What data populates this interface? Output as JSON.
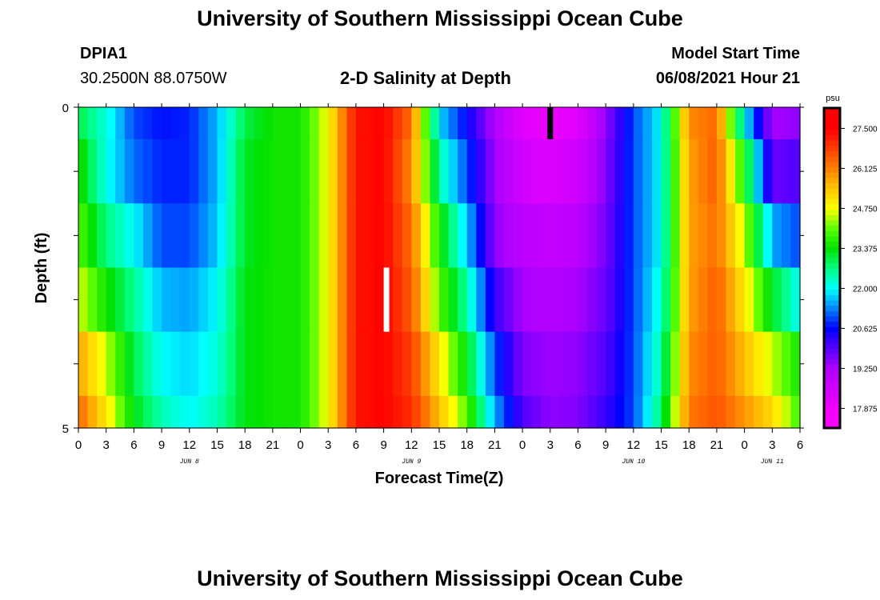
{
  "header": {
    "title": "University of Southern Mississippi Ocean Cube",
    "station_id": "DPIA1",
    "coordinates": "30.2500N  88.0750W",
    "chart_title": "2-D Salinity at Depth",
    "model_start_label": "Model Start Time",
    "model_start_value": "06/08/2021 Hour 21"
  },
  "footer": {
    "title": "University of Southern Mississippi Ocean Cube"
  },
  "colors": {
    "background": "#ffffff",
    "axis": "#000000"
  },
  "chart_data": {
    "type": "heatmap",
    "title": "2-D Salinity at Depth",
    "xlabel": "Forecast Time(Z)",
    "ylabel": "Depth (ft)",
    "ylim": [
      0,
      5
    ],
    "y_tick_labels": [
      "0",
      "5"
    ],
    "x_start_hour": 0,
    "x_hours": 78,
    "x_tick_labels": [
      "0",
      "3",
      "6",
      "9",
      "12",
      "15",
      "18",
      "21",
      "0",
      "3",
      "6",
      "9",
      "12",
      "15",
      "18",
      "21",
      "0",
      "3",
      "6",
      "9",
      "12",
      "15",
      "18",
      "21",
      "0",
      "3",
      "6"
    ],
    "date_labels": [
      {
        "hour": 12,
        "label": "JUN 8"
      },
      {
        "hour": 36,
        "label": "JUN 9"
      },
      {
        "hour": 60,
        "label": "JUN 10"
      },
      {
        "hour": 75,
        "label": "JUN 11"
      }
    ],
    "depth_layers": [
      0.0,
      0.5,
      1.5,
      2.5,
      3.5,
      4.5,
      5.0
    ],
    "time_nodes": [
      0,
      3,
      6,
      9,
      12,
      15,
      18,
      21,
      24,
      27,
      30,
      33,
      36,
      39,
      42,
      45,
      48,
      51,
      54,
      57,
      60,
      63,
      66,
      69,
      72,
      75,
      78
    ],
    "salinity_rows": [
      [
        23.0,
        22.2,
        21.0,
        20.7,
        20.8,
        21.6,
        23.0,
        23.5,
        23.5,
        24.8,
        27.3,
        27.5,
        26.3,
        21.8,
        20.6,
        19.2,
        18.2,
        18.0,
        18.2,
        19.5,
        21.0,
        22.0,
        26.0,
        26.4,
        22.0,
        19.3,
        19.5
      ],
      [
        23.6,
        22.1,
        21.2,
        20.8,
        20.8,
        21.6,
        23.2,
        23.5,
        23.5,
        24.8,
        27.3,
        27.5,
        26.0,
        22.5,
        21.0,
        19.4,
        18.5,
        18.3,
        18.6,
        19.6,
        21.0,
        22.0,
        25.8,
        26.5,
        23.5,
        19.8,
        20.0
      ],
      [
        24.0,
        22.7,
        22.0,
        21.0,
        21.0,
        21.7,
        23.2,
        23.5,
        23.5,
        24.8,
        27.3,
        27.5,
        26.3,
        23.5,
        21.7,
        19.5,
        19.0,
        18.8,
        19.0,
        19.7,
        21.0,
        22.0,
        25.8,
        26.3,
        24.5,
        21.5,
        21.0
      ],
      [
        24.6,
        23.5,
        22.6,
        21.6,
        21.5,
        22.0,
        23.3,
        23.5,
        23.5,
        24.8,
        27.3,
        27.5,
        26.5,
        24.0,
        22.5,
        20.2,
        19.3,
        19.2,
        19.3,
        19.8,
        21.0,
        22.2,
        25.8,
        26.5,
        25.0,
        23.2,
        22.0
      ],
      [
        25.8,
        24.5,
        23.0,
        22.0,
        21.8,
        22.2,
        23.3,
        23.5,
        23.5,
        24.8,
        27.3,
        27.5,
        26.8,
        25.0,
        23.3,
        21.0,
        19.6,
        19.4,
        19.5,
        20.0,
        21.0,
        22.5,
        26.0,
        26.5,
        25.5,
        24.5,
        23.5
      ],
      [
        26.4,
        25.0,
        23.3,
        22.4,
        22.0,
        22.4,
        23.3,
        23.5,
        23.5,
        24.8,
        27.3,
        27.5,
        27.0,
        25.5,
        24.0,
        21.5,
        20.0,
        19.5,
        19.6,
        20.2,
        21.0,
        22.8,
        26.2,
        26.6,
        25.9,
        25.2,
        23.8
      ]
    ],
    "missing_markers": [
      {
        "hour_start": 50.7,
        "hour_end": 51.3,
        "depth_top": 0.0,
        "depth_bottom": 0.5,
        "color": "#000000"
      },
      {
        "hour_start": 33.0,
        "hour_end": 33.6,
        "depth_top": 2.5,
        "depth_bottom": 3.5,
        "color": "#ffffff"
      }
    ],
    "colorbar": {
      "unit_label": "psu",
      "min": 17.2,
      "max": 28.2,
      "tick_labels": [
        "27.500",
        "26.125",
        "24.750",
        "23.375",
        "22.000",
        "20.625",
        "19.250",
        "17.875"
      ],
      "tick_values": [
        27.5,
        26.125,
        24.75,
        23.375,
        22.0,
        20.625,
        19.25,
        17.875
      ],
      "color_stops": [
        {
          "value": 17.2,
          "color": "#ff00ff"
        },
        {
          "value": 17.875,
          "color": "#f000ff"
        },
        {
          "value": 19.25,
          "color": "#b000ff"
        },
        {
          "value": 20.625,
          "color": "#0000ff"
        },
        {
          "value": 21.3,
          "color": "#0080ff"
        },
        {
          "value": 22.0,
          "color": "#00ffff"
        },
        {
          "value": 22.7,
          "color": "#00ff80"
        },
        {
          "value": 23.375,
          "color": "#00e000"
        },
        {
          "value": 24.1,
          "color": "#60ff00"
        },
        {
          "value": 24.75,
          "color": "#ffff00"
        },
        {
          "value": 25.5,
          "color": "#ffc000"
        },
        {
          "value": 26.125,
          "color": "#ff8000"
        },
        {
          "value": 26.8,
          "color": "#ff4000"
        },
        {
          "value": 27.5,
          "color": "#ff0000"
        },
        {
          "value": 28.2,
          "color": "#ff0000"
        }
      ]
    }
  }
}
